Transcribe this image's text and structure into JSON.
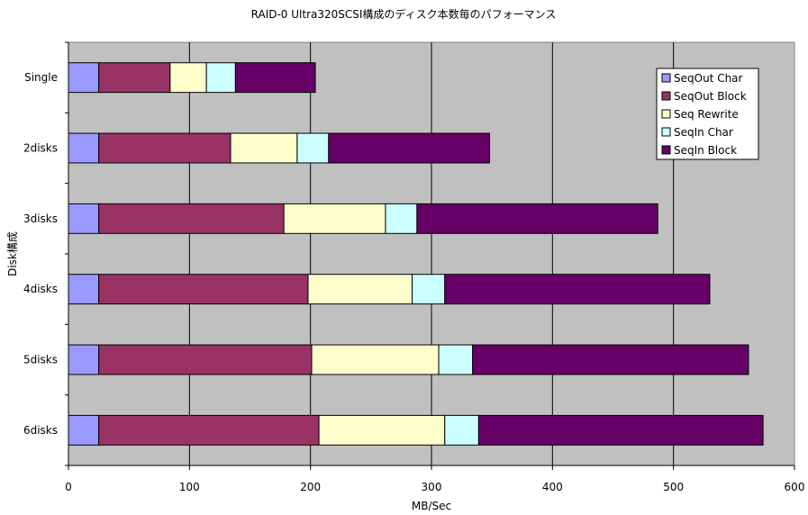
{
  "chart_data": {
    "type": "bar",
    "orientation": "horizontal",
    "stacked": true,
    "title": "RAID-0 Ultra320SCSI構成のディスク本数毎のパフォーマンス",
    "xlabel": "MB/Sec",
    "ylabel": "Disk構成",
    "xlim": [
      0,
      600
    ],
    "xticks": [
      "0",
      "100",
      "200",
      "300",
      "400",
      "500",
      "600"
    ],
    "grid": true,
    "legend_position": "top-right",
    "categories": [
      "Single",
      "2disks",
      "3disks",
      "4disks",
      "5disks",
      "6disks"
    ],
    "series": [
      {
        "name": "SeqOut Char",
        "color": "#9999ff",
        "values": [
          25,
          25,
          25,
          25,
          25,
          25
        ]
      },
      {
        "name": "SeqOut Block",
        "color": "#993366",
        "values": [
          59,
          109,
          153,
          173,
          176,
          182
        ]
      },
      {
        "name": "Seq Rewrite",
        "color": "#ffffcc",
        "values": [
          30,
          55,
          84,
          86,
          105,
          104
        ]
      },
      {
        "name": "SeqIn Char",
        "color": "#ccffff",
        "values": [
          24,
          26,
          26,
          27,
          28,
          28
        ]
      },
      {
        "name": "SeqIn Block",
        "color": "#660066",
        "values": [
          66,
          133,
          199,
          219,
          228,
          235
        ]
      }
    ]
  }
}
